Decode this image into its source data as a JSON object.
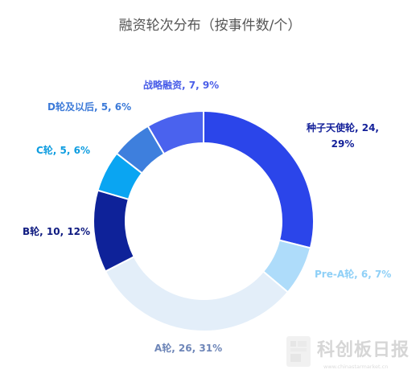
{
  "chart_data": {
    "type": "pie",
    "title": "融资轮次分布（按事件数/个）",
    "categories": [
      "种子天使轮",
      "Pre-A轮",
      "A轮",
      "B轮",
      "C轮",
      "D轮及以后",
      "战略融资"
    ],
    "values": [
      24,
      6,
      26,
      10,
      5,
      5,
      7
    ],
    "percents": [
      29,
      7,
      31,
      12,
      6,
      6,
      9
    ],
    "data_labels": [
      [
        "种子天使轮, 24,",
        "29%"
      ],
      [
        "Pre-A轮, 6, 7%"
      ],
      [
        "A轮, 26, 31%"
      ],
      [
        "B轮, 10, 12%"
      ],
      [
        "C轮, 5, 6%"
      ],
      [
        "D轮及以后, 5, 6%"
      ],
      [
        "战略融资, 7, 9%"
      ]
    ],
    "colors": [
      "#2b45ea",
      "#aedcfa",
      "#e3eef9",
      "#0e2299",
      "#0aa5f2",
      "#3e7fdd",
      "#4a62ee"
    ],
    "label_colors": [
      "#14219a",
      "#8fd0f7",
      "#6e86b8",
      "#0e1a80",
      "#0f9de0",
      "#3c7ad8",
      "#4a5ee8"
    ],
    "donut": true,
    "legend": "none"
  },
  "watermark": {
    "brand": "科创板日报",
    "url": "www.chinastarmarket.cn",
    "icon": "document-chart-icon"
  }
}
